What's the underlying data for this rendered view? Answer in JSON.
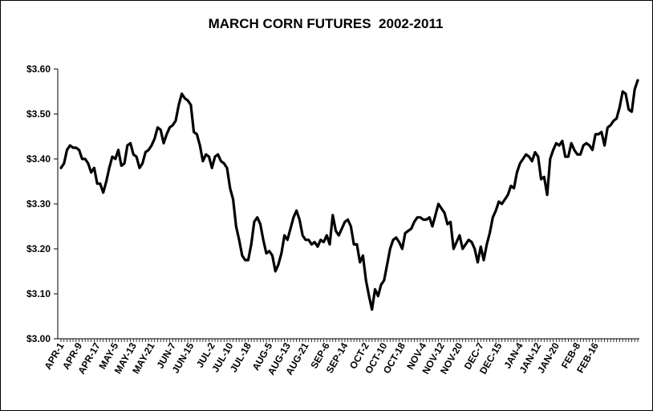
{
  "chart_data": {
    "type": "line",
    "title": "MARCH CORN FUTURES  2002-2011",
    "xlabel": "",
    "ylabel": "",
    "ylim": [
      3.0,
      3.6
    ],
    "y_ticks": [
      "$3.00",
      "$3.10",
      "$3.20",
      "$3.30",
      "$3.40",
      "$3.50",
      "$3.60"
    ],
    "y_tick_values": [
      3.0,
      3.1,
      3.2,
      3.3,
      3.4,
      3.5,
      3.6
    ],
    "x_tick_labels": [
      "APR-1",
      "APR-9",
      "APR-17",
      "MAY-5",
      "MAY-13",
      "MAY-21",
      "JUN-7",
      "JUN-15",
      "JUL-2",
      "JUL-10",
      "JUL-18",
      "AUG-5",
      "AUG-13",
      "AUG-21",
      "SEP-6",
      "SEP-14",
      "OCT-2",
      "OCT-10",
      "OCT-18",
      "NOV-4",
      "NOV-12",
      "NOV-20",
      "DEC-7",
      "DEC-15",
      "JAN-4",
      "JAN-12",
      "JAN-20",
      "FEB-8",
      "FEB-16"
    ],
    "x_tick_index": [
      0,
      6,
      12,
      18,
      24,
      30,
      37,
      43,
      50,
      56,
      62,
      69,
      75,
      81,
      88,
      94,
      101,
      107,
      113,
      120,
      126,
      132,
      139,
      145,
      152,
      158,
      164,
      171,
      177
    ],
    "grid": false,
    "legend": "none",
    "line_color": "#000000",
    "series": [
      {
        "values": [
          3.38,
          3.39,
          3.42,
          3.43,
          3.425,
          3.425,
          3.42,
          3.4,
          3.4,
          3.39,
          3.37,
          3.38,
          3.345,
          3.345,
          3.325,
          3.35,
          3.38,
          3.405,
          3.4,
          3.42,
          3.385,
          3.39,
          3.43,
          3.435,
          3.41,
          3.405,
          3.38,
          3.39,
          3.415,
          3.42,
          3.43,
          3.445,
          3.47,
          3.465,
          3.435,
          3.455,
          3.47,
          3.475,
          3.485,
          3.52,
          3.545,
          3.535,
          3.53,
          3.52,
          3.46,
          3.455,
          3.43,
          3.395,
          3.41,
          3.405,
          3.38,
          3.405,
          3.41,
          3.395,
          3.39,
          3.38,
          3.335,
          3.31,
          3.25,
          3.22,
          3.185,
          3.175,
          3.175,
          3.21,
          3.26,
          3.27,
          3.255,
          3.22,
          3.19,
          3.195,
          3.185,
          3.15,
          3.165,
          3.19,
          3.23,
          3.22,
          3.245,
          3.27,
          3.285,
          3.265,
          3.23,
          3.22,
          3.22,
          3.21,
          3.215,
          3.205,
          3.22,
          3.215,
          3.23,
          3.21,
          3.275,
          3.24,
          3.23,
          3.245,
          3.26,
          3.265,
          3.25,
          3.21,
          3.21,
          3.17,
          3.185,
          3.13,
          3.095,
          3.065,
          3.11,
          3.095,
          3.12,
          3.13,
          3.165,
          3.2,
          3.22,
          3.225,
          3.215,
          3.2,
          3.235,
          3.24,
          3.245,
          3.26,
          3.27,
          3.27,
          3.265,
          3.265,
          3.27,
          3.25,
          3.275,
          3.3,
          3.29,
          3.28,
          3.255,
          3.26,
          3.2,
          3.215,
          3.23,
          3.2,
          3.21,
          3.22,
          3.215,
          3.2,
          3.17,
          3.205,
          3.175,
          3.21,
          3.235,
          3.27,
          3.285,
          3.305,
          3.3,
          3.31,
          3.32,
          3.34,
          3.335,
          3.37,
          3.39,
          3.4,
          3.41,
          3.405,
          3.395,
          3.415,
          3.405,
          3.355,
          3.36,
          3.32,
          3.4,
          3.42,
          3.435,
          3.43,
          3.44,
          3.405,
          3.405,
          3.435,
          3.42,
          3.41,
          3.41,
          3.43,
          3.435,
          3.43,
          3.42,
          3.455,
          3.455,
          3.46,
          3.43,
          3.47,
          3.475,
          3.485,
          3.49,
          3.515,
          3.55,
          3.545,
          3.51,
          3.505,
          3.555,
          3.575
        ]
      }
    ]
  }
}
